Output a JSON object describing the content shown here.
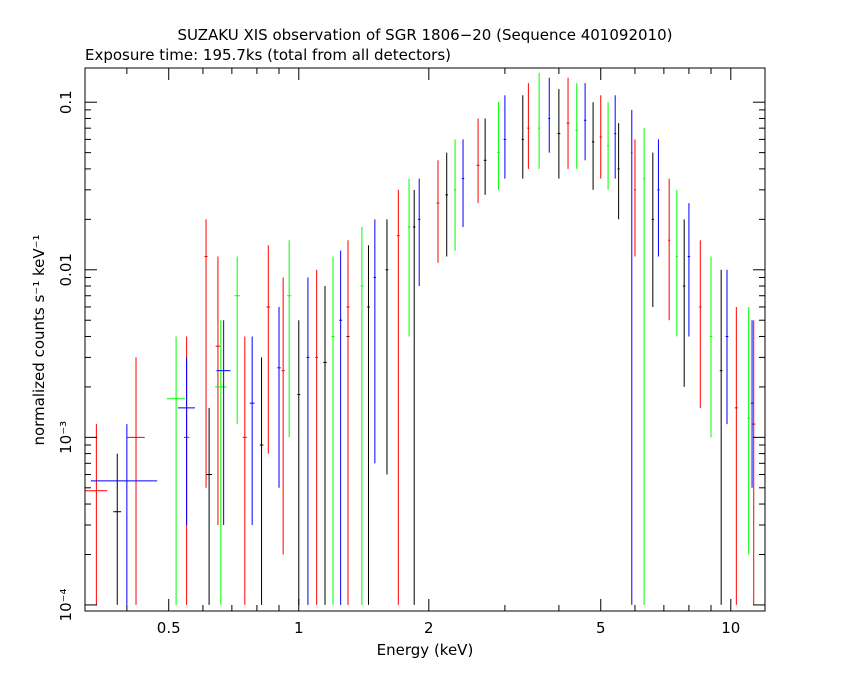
{
  "chart_data": {
    "type": "scatter",
    "title": "SUZAKU XIS observation of SGR 1806−20 (Sequence 401092010)",
    "subtitle": "Exposure time: 195.7ks (total from all detectors)",
    "xlabel": "Energy (keV)",
    "ylabel": "normalized counts s⁻¹ keV⁻¹",
    "x_scale": "log",
    "y_scale": "log",
    "xlim": [
      0.32,
      12.0
    ],
    "ylim": [
      9.2e-05,
      0.16
    ],
    "x_ticks": [
      {
        "value": 0.5,
        "label": "0.5"
      },
      {
        "value": 1,
        "label": "1"
      },
      {
        "value": 2,
        "label": "2"
      },
      {
        "value": 5,
        "label": "5"
      },
      {
        "value": 10,
        "label": "10"
      }
    ],
    "y_ticks": [
      {
        "value": 0.0001,
        "label": "10⁻⁴"
      },
      {
        "value": 0.001,
        "label": "10⁻³"
      },
      {
        "value": 0.01,
        "label": "0.01"
      },
      {
        "value": 0.1,
        "label": "0.1"
      }
    ],
    "grid": false,
    "legend": "none",
    "series": [
      {
        "color": "#000000",
        "points": [
          {
            "x": 0.38,
            "y": 0.00036,
            "xerr": 0.008,
            "ylo": 0.0001,
            "yhi": 0.0008
          },
          {
            "x": 0.62,
            "y": 0.0006,
            "xerr": 0.01,
            "ylo": 0.0001,
            "yhi": 0.0015
          },
          {
            "x": 0.82,
            "y": 0.0009,
            "xerr": 0.008,
            "ylo": 0.0001,
            "yhi": 0.003
          },
          {
            "x": 1.0,
            "y": 0.0018,
            "xerr": 0.008,
            "ylo": 0.0001,
            "yhi": 0.005
          },
          {
            "x": 1.15,
            "y": 0.0028,
            "xerr": 0.01,
            "ylo": 0.0001,
            "yhi": 0.008
          },
          {
            "x": 1.3,
            "y": 0.004,
            "xerr": 0.01,
            "ylo": 0.0001,
            "yhi": 0.011
          },
          {
            "x": 1.45,
            "y": 0.006,
            "xerr": 0.01,
            "ylo": 0.0001,
            "yhi": 0.014
          },
          {
            "x": 1.6,
            "y": 0.01,
            "xerr": 0.012,
            "ylo": 0.0006,
            "yhi": 0.02
          },
          {
            "x": 1.85,
            "y": 0.018,
            "xerr": 0.012,
            "ylo": 0.0001,
            "yhi": 0.03
          },
          {
            "x": 2.2,
            "y": 0.028,
            "xerr": 0.015,
            "ylo": 0.012,
            "yhi": 0.05
          },
          {
            "x": 2.7,
            "y": 0.045,
            "xerr": 0.02,
            "ylo": 0.028,
            "yhi": 0.08
          },
          {
            "x": 3.3,
            "y": 0.06,
            "xerr": 0.02,
            "ylo": 0.035,
            "yhi": 0.11
          },
          {
            "x": 4.0,
            "y": 0.065,
            "xerr": 0.03,
            "ylo": 0.035,
            "yhi": 0.12
          },
          {
            "x": 4.8,
            "y": 0.058,
            "xerr": 0.03,
            "ylo": 0.03,
            "yhi": 0.1
          },
          {
            "x": 5.5,
            "y": 0.04,
            "xerr": 0.03,
            "ylo": 0.02,
            "yhi": 0.075
          },
          {
            "x": 6.6,
            "y": 0.02,
            "xerr": 0.04,
            "ylo": 0.006,
            "yhi": 0.05
          },
          {
            "x": 7.8,
            "y": 0.008,
            "xerr": 0.05,
            "ylo": 0.002,
            "yhi": 0.02
          },
          {
            "x": 9.5,
            "y": 0.0025,
            "xerr": 0.07,
            "ylo": 0.0001,
            "yhi": 0.01
          }
        ]
      },
      {
        "color": "#ff0000",
        "points": [
          {
            "x": 0.34,
            "y": 0.00048,
            "xerr": 0.02,
            "ylo": 0.0001,
            "yhi": 0.0012
          },
          {
            "x": 0.42,
            "y": 0.001,
            "xerr": 0.02,
            "ylo": 0.0001,
            "yhi": 0.003
          },
          {
            "x": 0.55,
            "y": 0.001,
            "xerr": 0.008,
            "ylo": 0.0001,
            "yhi": 0.004
          },
          {
            "x": 0.61,
            "y": 0.012,
            "xerr": 0.005,
            "ylo": 0.0005,
            "yhi": 0.02
          },
          {
            "x": 0.65,
            "y": 0.0035,
            "xerr": 0.008,
            "ylo": 0.0003,
            "yhi": 0.012
          },
          {
            "x": 0.75,
            "y": 0.001,
            "xerr": 0.008,
            "ylo": 0.0001,
            "yhi": 0.004
          },
          {
            "x": 0.85,
            "y": 0.006,
            "xerr": 0.008,
            "ylo": 0.0008,
            "yhi": 0.014
          },
          {
            "x": 0.92,
            "y": 0.0025,
            "xerr": 0.008,
            "ylo": 0.0002,
            "yhi": 0.009
          },
          {
            "x": 1.1,
            "y": 0.003,
            "xerr": 0.008,
            "ylo": 0.0001,
            "yhi": 0.01
          },
          {
            "x": 1.3,
            "y": 0.006,
            "xerr": 0.01,
            "ylo": 0.0001,
            "yhi": 0.015
          },
          {
            "x": 1.7,
            "y": 0.016,
            "xerr": 0.012,
            "ylo": 0.0001,
            "yhi": 0.03
          },
          {
            "x": 2.1,
            "y": 0.025,
            "xerr": 0.015,
            "ylo": 0.011,
            "yhi": 0.045
          },
          {
            "x": 2.6,
            "y": 0.042,
            "xerr": 0.02,
            "ylo": 0.025,
            "yhi": 0.08
          },
          {
            "x": 3.4,
            "y": 0.07,
            "xerr": 0.02,
            "ylo": 0.04,
            "yhi": 0.13
          },
          {
            "x": 4.2,
            "y": 0.075,
            "xerr": 0.03,
            "ylo": 0.04,
            "yhi": 0.14
          },
          {
            "x": 5.0,
            "y": 0.062,
            "xerr": 0.03,
            "ylo": 0.035,
            "yhi": 0.11
          },
          {
            "x": 6.0,
            "y": 0.03,
            "xerr": 0.03,
            "ylo": 0.012,
            "yhi": 0.06
          },
          {
            "x": 7.2,
            "y": 0.015,
            "xerr": 0.04,
            "ylo": 0.005,
            "yhi": 0.035
          },
          {
            "x": 8.5,
            "y": 0.006,
            "xerr": 0.05,
            "ylo": 0.0015,
            "yhi": 0.015
          },
          {
            "x": 10.3,
            "y": 0.0015,
            "xerr": 0.08,
            "ylo": 0.0001,
            "yhi": 0.006
          },
          {
            "x": 11.3,
            "y": 0.0012,
            "xerr": 0.1,
            "ylo": 0.0001,
            "yhi": 0.005
          }
        ]
      },
      {
        "color": "#00ff00",
        "points": [
          {
            "x": 0.52,
            "y": 0.0017,
            "xerr": 0.025,
            "ylo": 0.0001,
            "yhi": 0.004
          },
          {
            "x": 0.66,
            "y": 0.002,
            "xerr": 0.02,
            "ylo": 0.0001,
            "yhi": 0.005
          },
          {
            "x": 0.72,
            "y": 0.007,
            "xerr": 0.01,
            "ylo": 0.0012,
            "yhi": 0.012
          },
          {
            "x": 0.95,
            "y": 0.007,
            "xerr": 0.01,
            "ylo": 0.001,
            "yhi": 0.015
          },
          {
            "x": 1.2,
            "y": 0.004,
            "xerr": 0.01,
            "ylo": 0.0001,
            "yhi": 0.012
          },
          {
            "x": 1.4,
            "y": 0.008,
            "xerr": 0.01,
            "ylo": 0.0001,
            "yhi": 0.018
          },
          {
            "x": 1.8,
            "y": 0.018,
            "xerr": 0.012,
            "ylo": 0.004,
            "yhi": 0.035
          },
          {
            "x": 2.3,
            "y": 0.03,
            "xerr": 0.015,
            "ylo": 0.013,
            "yhi": 0.06
          },
          {
            "x": 2.9,
            "y": 0.05,
            "xerr": 0.02,
            "ylo": 0.03,
            "yhi": 0.1
          },
          {
            "x": 3.6,
            "y": 0.07,
            "xerr": 0.02,
            "ylo": 0.04,
            "yhi": 0.15
          },
          {
            "x": 4.4,
            "y": 0.068,
            "xerr": 0.03,
            "ylo": 0.04,
            "yhi": 0.13
          },
          {
            "x": 5.2,
            "y": 0.055,
            "xerr": 0.03,
            "ylo": 0.03,
            "yhi": 0.1
          },
          {
            "x": 6.3,
            "y": 0.035,
            "xerr": 0.03,
            "ylo": 0.0001,
            "yhi": 0.07
          },
          {
            "x": 7.5,
            "y": 0.012,
            "xerr": 0.04,
            "ylo": 0.004,
            "yhi": 0.03
          },
          {
            "x": 9.0,
            "y": 0.004,
            "xerr": 0.06,
            "ylo": 0.001,
            "yhi": 0.012
          },
          {
            "x": 11.0,
            "y": 0.0013,
            "xerr": 0.08,
            "ylo": 0.0002,
            "yhi": 0.006
          }
        ]
      },
      {
        "color": "#0000ff",
        "points": [
          {
            "x": 0.4,
            "y": 0.00055,
            "xerr": 0.07,
            "ylo": 0.0001,
            "yhi": 0.0012
          },
          {
            "x": 0.55,
            "y": 0.0015,
            "xerr": 0.025,
            "ylo": 0.0003,
            "yhi": 0.003
          },
          {
            "x": 0.67,
            "y": 0.0025,
            "xerr": 0.025,
            "ylo": 0.0003,
            "yhi": 0.005
          },
          {
            "x": 0.78,
            "y": 0.0016,
            "xerr": 0.01,
            "ylo": 0.0003,
            "yhi": 0.004
          },
          {
            "x": 0.9,
            "y": 0.0026,
            "xerr": 0.008,
            "ylo": 0.0005,
            "yhi": 0.006
          },
          {
            "x": 1.05,
            "y": 0.003,
            "xerr": 0.008,
            "ylo": 0.0001,
            "yhi": 0.009
          },
          {
            "x": 1.25,
            "y": 0.005,
            "xerr": 0.01,
            "ylo": 0.0001,
            "yhi": 0.013
          },
          {
            "x": 1.5,
            "y": 0.009,
            "xerr": 0.01,
            "ylo": 0.0007,
            "yhi": 0.02
          },
          {
            "x": 1.9,
            "y": 0.02,
            "xerr": 0.012,
            "ylo": 0.008,
            "yhi": 0.035
          },
          {
            "x": 2.4,
            "y": 0.035,
            "xerr": 0.015,
            "ylo": 0.018,
            "yhi": 0.06
          },
          {
            "x": 3.0,
            "y": 0.06,
            "xerr": 0.02,
            "ylo": 0.035,
            "yhi": 0.11
          },
          {
            "x": 3.8,
            "y": 0.08,
            "xerr": 0.02,
            "ylo": 0.05,
            "yhi": 0.14
          },
          {
            "x": 4.6,
            "y": 0.078,
            "xerr": 0.03,
            "ylo": 0.045,
            "yhi": 0.13
          },
          {
            "x": 5.4,
            "y": 0.065,
            "xerr": 0.03,
            "ylo": 0.035,
            "yhi": 0.11
          },
          {
            "x": 5.9,
            "y": 0.05,
            "xerr": 0.02,
            "ylo": 0.0001,
            "yhi": 0.09
          },
          {
            "x": 6.8,
            "y": 0.03,
            "xerr": 0.04,
            "ylo": 0.012,
            "yhi": 0.06
          },
          {
            "x": 8.0,
            "y": 0.012,
            "xerr": 0.05,
            "ylo": 0.004,
            "yhi": 0.025
          },
          {
            "x": 9.8,
            "y": 0.004,
            "xerr": 0.07,
            "ylo": 0.0012,
            "yhi": 0.01
          },
          {
            "x": 11.2,
            "y": 0.0016,
            "xerr": 0.08,
            "ylo": 0.0005,
            "yhi": 0.005
          }
        ]
      }
    ]
  }
}
